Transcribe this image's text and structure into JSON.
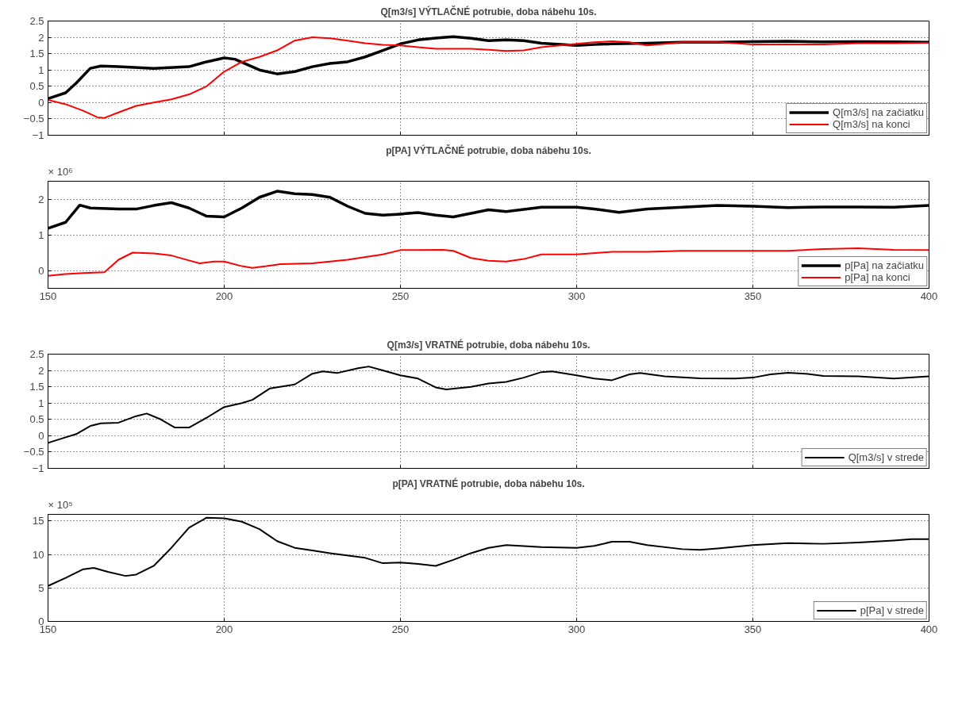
{
  "chart_data": [
    {
      "type": "line",
      "title": "Q[m3/s] VÝTLAČNÉ potrubie, doba nábehu 10s.",
      "xlim": [
        150,
        400
      ],
      "xticks": [
        150,
        200,
        250,
        300,
        350,
        400
      ],
      "ylim": [
        -1,
        2.5
      ],
      "yticks": [
        -1,
        -0.5,
        0,
        0.5,
        1,
        1.5,
        2,
        2.5
      ],
      "grid": true,
      "legend": "bottom right",
      "tick_labels": "y",
      "series": [
        {
          "name": "Q[m3/s] na začiatku",
          "color": "#000000",
          "x": [
            150,
            155,
            158,
            162,
            165,
            170,
            180,
            190,
            195,
            200,
            203,
            210,
            215,
            220,
            225,
            230,
            235,
            240,
            245,
            250,
            255,
            260,
            265,
            270,
            275,
            280,
            285,
            290,
            300,
            305,
            310,
            320,
            330,
            340,
            350,
            360,
            370,
            380,
            390,
            400
          ],
          "values": [
            0.12,
            0.3,
            0.6,
            1.05,
            1.12,
            1.1,
            1.05,
            1.1,
            1.25,
            1.37,
            1.33,
            1.0,
            0.88,
            0.95,
            1.1,
            1.2,
            1.25,
            1.4,
            1.6,
            1.8,
            1.92,
            1.98,
            2.02,
            1.97,
            1.9,
            1.92,
            1.9,
            1.82,
            1.75,
            1.78,
            1.8,
            1.82,
            1.85,
            1.85,
            1.87,
            1.88,
            1.86,
            1.87,
            1.86,
            1.85
          ]
        },
        {
          "name": "Q[m3/s] na konci",
          "color": "#ff0000",
          "x": [
            150,
            155,
            160,
            164,
            166,
            170,
            175,
            180,
            185,
            190,
            195,
            200,
            205,
            210,
            215,
            220,
            225,
            230,
            235,
            240,
            245,
            250,
            255,
            260,
            270,
            275,
            280,
            285,
            290,
            300,
            305,
            310,
            315,
            320,
            325,
            330,
            340,
            345,
            350,
            360,
            370,
            380,
            390,
            400
          ],
          "values": [
            0.08,
            -0.05,
            -0.25,
            -0.45,
            -0.47,
            -0.3,
            -0.1,
            0.0,
            0.1,
            0.25,
            0.5,
            0.95,
            1.25,
            1.4,
            1.6,
            1.9,
            2.0,
            1.97,
            1.9,
            1.82,
            1.77,
            1.75,
            1.7,
            1.65,
            1.65,
            1.62,
            1.58,
            1.6,
            1.7,
            1.8,
            1.85,
            1.88,
            1.85,
            1.75,
            1.8,
            1.85,
            1.85,
            1.82,
            1.78,
            1.78,
            1.78,
            1.82,
            1.82,
            1.83
          ]
        }
      ]
    },
    {
      "type": "line",
      "title": "p[PA] VÝTLAČNÉ potrubie, doba nábehu 10s.",
      "annotations": [
        "× 10⁶"
      ],
      "xlim": [
        150,
        400
      ],
      "xticks": [
        150,
        200,
        250,
        300,
        350,
        400
      ],
      "ylim": [
        -0.5,
        2.5
      ],
      "yticks": [
        0,
        1,
        2
      ],
      "grid": true,
      "legend": "bottom right",
      "series": [
        {
          "name": "p[Pa] na začiatku",
          "color": "#000000",
          "x": [
            150,
            155,
            159,
            162,
            170,
            175,
            180,
            185,
            190,
            195,
            200,
            205,
            210,
            215,
            220,
            225,
            230,
            235,
            240,
            245,
            250,
            255,
            260,
            265,
            270,
            275,
            280,
            290,
            300,
            305,
            312,
            320,
            330,
            340,
            350,
            360,
            370,
            380,
            390,
            400
          ],
          "values": [
            1.18,
            1.35,
            1.83,
            1.75,
            1.72,
            1.72,
            1.82,
            1.9,
            1.75,
            1.52,
            1.5,
            1.75,
            2.05,
            2.22,
            2.15,
            2.13,
            2.05,
            1.8,
            1.6,
            1.55,
            1.58,
            1.62,
            1.55,
            1.5,
            1.6,
            1.7,
            1.65,
            1.77,
            1.77,
            1.72,
            1.63,
            1.72,
            1.77,
            1.82,
            1.8,
            1.76,
            1.78,
            1.78,
            1.77,
            1.82
          ]
        },
        {
          "name": "p[Pa] na konci",
          "color": "#ff0000",
          "x": [
            150,
            155,
            160,
            166,
            170,
            174,
            180,
            185,
            190,
            193,
            197,
            200,
            205,
            208,
            212,
            216,
            225,
            235,
            245,
            250,
            255,
            262,
            265,
            270,
            275,
            280,
            285,
            290,
            300,
            310,
            320,
            330,
            340,
            350,
            360,
            370,
            380,
            390,
            400
          ],
          "values": [
            -0.15,
            -0.1,
            -0.07,
            -0.05,
            0.3,
            0.5,
            0.48,
            0.42,
            0.28,
            0.2,
            0.25,
            0.25,
            0.12,
            0.07,
            0.12,
            0.18,
            0.2,
            0.3,
            0.45,
            0.57,
            0.57,
            0.58,
            0.55,
            0.35,
            0.27,
            0.25,
            0.32,
            0.45,
            0.45,
            0.52,
            0.52,
            0.55,
            0.55,
            0.55,
            0.55,
            0.6,
            0.62,
            0.58,
            0.57
          ]
        }
      ]
    },
    {
      "type": "line",
      "title": "Q[m3/s] VRATNÉ potrubie, doba nábehu 10s.",
      "xlim": [
        150,
        400
      ],
      "xticks": [
        150,
        200,
        250,
        300,
        350,
        400
      ],
      "ylim": [
        -1,
        2.5
      ],
      "yticks": [
        -1,
        -0.5,
        0,
        0.5,
        1,
        1.5,
        2,
        2.5
      ],
      "grid": true,
      "legend": "bottom right",
      "tick_labels": "y",
      "series": [
        {
          "name": "Q[m3/s] v strede",
          "color": "#000000",
          "x": [
            150,
            155,
            158,
            162,
            165,
            170,
            175,
            178,
            182,
            186,
            190,
            195,
            200,
            205,
            208,
            213,
            220,
            225,
            228,
            232,
            238,
            241,
            245,
            250,
            255,
            260,
            263,
            270,
            275,
            280,
            285,
            290,
            293,
            300,
            305,
            310,
            315,
            318,
            325,
            335,
            345,
            350,
            355,
            360,
            365,
            370,
            380,
            390,
            400
          ],
          "values": [
            -0.22,
            -0.05,
            0.05,
            0.3,
            0.38,
            0.4,
            0.6,
            0.68,
            0.5,
            0.25,
            0.25,
            0.55,
            0.88,
            1.0,
            1.1,
            1.45,
            1.57,
            1.9,
            1.97,
            1.92,
            2.07,
            2.12,
            2.0,
            1.85,
            1.75,
            1.48,
            1.42,
            1.5,
            1.6,
            1.65,
            1.78,
            1.95,
            1.97,
            1.85,
            1.75,
            1.7,
            1.88,
            1.92,
            1.82,
            1.76,
            1.75,
            1.78,
            1.88,
            1.93,
            1.9,
            1.83,
            1.82,
            1.75,
            1.82
          ]
        }
      ]
    },
    {
      "type": "line",
      "title": "p[PA] VRATNÉ potrubie, doba nábehu 10s.",
      "annotations": [
        "× 10⁵"
      ],
      "xlim": [
        150,
        400
      ],
      "xticks": [
        150,
        200,
        250,
        300,
        350,
        400
      ],
      "ylim": [
        0,
        16
      ],
      "yticks": [
        0,
        5,
        10,
        15
      ],
      "grid": true,
      "legend": "bottom right",
      "series": [
        {
          "name": "p[Pa] v strede",
          "color": "#000000",
          "x": [
            150,
            155,
            160,
            163,
            167,
            172,
            175,
            180,
            185,
            190,
            195,
            200,
            205,
            210,
            215,
            220,
            225,
            230,
            240,
            245,
            250,
            255,
            260,
            265,
            270,
            275,
            280,
            290,
            300,
            305,
            310,
            315,
            320,
            330,
            335,
            340,
            350,
            360,
            370,
            380,
            390,
            395,
            400
          ],
          "values": [
            5.3,
            6.5,
            7.8,
            8.0,
            7.4,
            6.8,
            7.0,
            8.3,
            11,
            14,
            15.5,
            15.4,
            14.9,
            13.8,
            12,
            11,
            10.6,
            10.2,
            9.5,
            8.7,
            8.8,
            8.6,
            8.3,
            9.2,
            10.2,
            11.0,
            11.4,
            11.1,
            11.0,
            11.3,
            11.9,
            11.9,
            11.4,
            10.8,
            10.7,
            10.9,
            11.4,
            11.7,
            11.6,
            11.8,
            12.1,
            12.3,
            12.3
          ]
        }
      ]
    }
  ]
}
